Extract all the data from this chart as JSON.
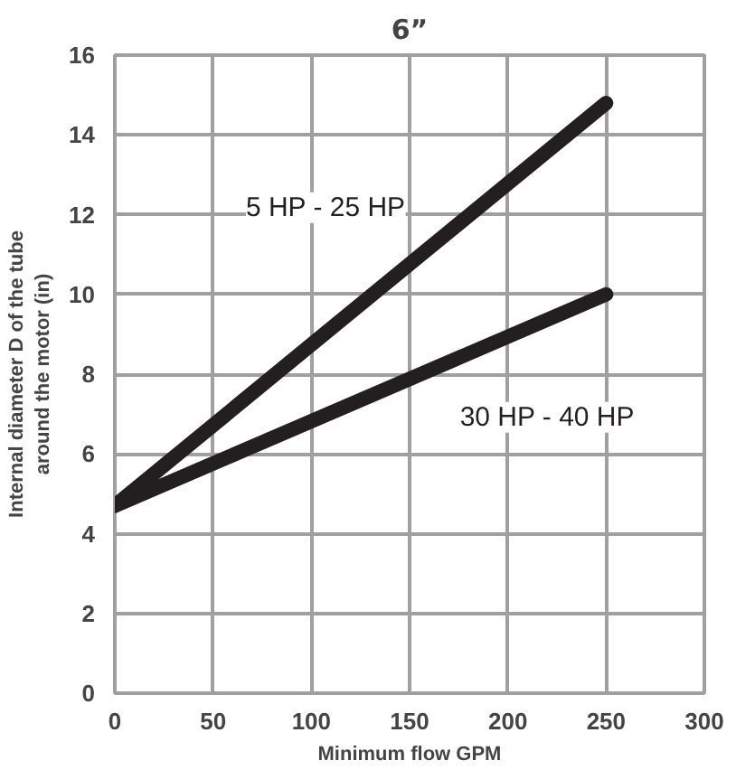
{
  "chart_data": {
    "type": "line",
    "title": "6”",
    "xlabel": "Minimum flow GPM",
    "ylabel": "Internal diameter D of the tube\naround the motor (in)",
    "x": [
      0,
      250
    ],
    "series": [
      {
        "name": "5 HP - 25 HP",
        "color": "#231f20",
        "values": [
          4.7,
          14.8
        ]
      },
      {
        "name": "30 HP - 40 HP",
        "color": "#231f20",
        "values": [
          4.7,
          10
        ]
      }
    ],
    "xlim": [
      0,
      300
    ],
    "xticks": [
      0,
      50,
      100,
      150,
      200,
      250,
      300
    ],
    "ylim": [
      0,
      16
    ],
    "yticks": [
      0,
      2,
      4,
      6,
      8,
      10,
      12,
      14,
      16
    ],
    "grid": true,
    "legend": false,
    "marker": "none",
    "line_style": "solid"
  }
}
